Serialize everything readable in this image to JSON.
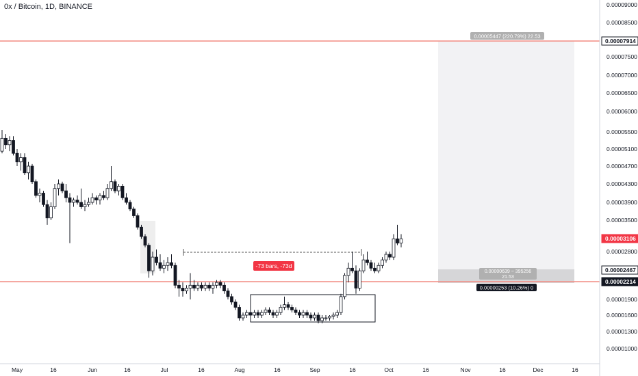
{
  "header": {
    "title": "0x / Bitcoin, 1D, BINANCE"
  },
  "colors": {
    "candle_up": "#ffffff",
    "candle_down": "#131722",
    "wick": "#131722",
    "hline": "#f28b82",
    "box_fill": "#ebebeb",
    "label_dark": "#131722",
    "label_gray": "#b0b0b0",
    "label_red": "#f23645",
    "axis_text": "#131722"
  },
  "chart_data": {
    "type": "candlestick",
    "title": "0x / Bitcoin, 1D, BINANCE",
    "y_ticks": [
      "0.00009000",
      "0.00008500",
      "0.00007914",
      "0.00007500",
      "0.00007000",
      "0.00006500",
      "0.00006000",
      "0.00005500",
      "0.00005100",
      "0.00004700",
      "0.00004300",
      "0.00003900",
      "0.00003500",
      "0.00003106",
      "0.00002800",
      "0.00002467",
      "0.00002214",
      "0.00001900",
      "0.00001600",
      "0.00001300",
      "0.00001000"
    ],
    "x_ticks": [
      "May",
      "16",
      "Jun",
      "16",
      "Jul",
      "16",
      "Aug",
      "16",
      "Sep",
      "16",
      "Oct",
      "16",
      "Nov",
      "16",
      "Dec",
      "16"
    ],
    "price_labels": [
      {
        "text": "0.00007914",
        "style": "dark-outline"
      },
      {
        "text": "0.00003106",
        "style": "red"
      },
      {
        "text": "0.00002467",
        "style": "dark-outline"
      },
      {
        "text": "0.00002214",
        "style": "dark"
      }
    ],
    "horizontal_lines": [
      "0.00007914",
      "0.00002214"
    ],
    "annotations": {
      "range_label": "-73 bars, -73d",
      "target_label": "0.00005447 (220.79%) 22.53",
      "mid_label_line1": "0.00000639 ~ 395256",
      "mid_label_line2": "21.53",
      "stop_label": "0.00000253 (10.26%) 0"
    },
    "ohlc_approx": [
      {
        "o": 5.05,
        "h": 5.55,
        "l": 5.0,
        "c": 5.35
      },
      {
        "o": 5.35,
        "h": 5.45,
        "l": 5.1,
        "c": 5.2
      },
      {
        "o": 5.2,
        "h": 5.4,
        "l": 5.05,
        "c": 5.3
      },
      {
        "o": 5.3,
        "h": 5.4,
        "l": 4.95,
        "c": 5.0
      },
      {
        "o": 5.0,
        "h": 5.1,
        "l": 4.7,
        "c": 4.8
      },
      {
        "o": 4.8,
        "h": 5.0,
        "l": 4.6,
        "c": 4.9
      },
      {
        "o": 4.9,
        "h": 5.0,
        "l": 4.5,
        "c": 4.55
      },
      {
        "o": 4.55,
        "h": 4.8,
        "l": 4.4,
        "c": 4.7
      },
      {
        "o": 4.7,
        "h": 4.75,
        "l": 4.3,
        "c": 4.35
      },
      {
        "o": 4.35,
        "h": 4.4,
        "l": 4.0,
        "c": 4.05
      },
      {
        "o": 4.05,
        "h": 4.2,
        "l": 3.9,
        "c": 4.1
      },
      {
        "o": 4.1,
        "h": 4.15,
        "l": 3.8,
        "c": 3.85
      },
      {
        "o": 3.85,
        "h": 3.95,
        "l": 3.4,
        "c": 3.55
      },
      {
        "o": 3.55,
        "h": 3.9,
        "l": 3.5,
        "c": 3.8
      },
      {
        "o": 3.8,
        "h": 4.3,
        "l": 3.75,
        "c": 4.2
      },
      {
        "o": 4.2,
        "h": 4.4,
        "l": 4.05,
        "c": 4.3
      },
      {
        "o": 4.3,
        "h": 4.35,
        "l": 4.1,
        "c": 4.15
      },
      {
        "o": 4.15,
        "h": 4.3,
        "l": 3.9,
        "c": 4.0
      },
      {
        "o": 4.0,
        "h": 4.1,
        "l": 3.0,
        "c": 3.9
      },
      {
        "o": 3.9,
        "h": 4.0,
        "l": 3.8,
        "c": 3.95
      },
      {
        "o": 3.95,
        "h": 4.05,
        "l": 3.85,
        "c": 3.9
      },
      {
        "o": 3.9,
        "h": 4.2,
        "l": 3.75,
        "c": 3.8
      },
      {
        "o": 3.8,
        "h": 3.95,
        "l": 3.7,
        "c": 3.85
      },
      {
        "o": 3.85,
        "h": 4.0,
        "l": 3.8,
        "c": 3.9
      },
      {
        "o": 3.9,
        "h": 4.1,
        "l": 3.85,
        "c": 4.0
      },
      {
        "o": 4.0,
        "h": 4.05,
        "l": 3.85,
        "c": 3.95
      },
      {
        "o": 3.95,
        "h": 4.1,
        "l": 3.85,
        "c": 4.05
      },
      {
        "o": 4.05,
        "h": 4.15,
        "l": 3.95,
        "c": 4.0
      },
      {
        "o": 4.0,
        "h": 4.3,
        "l": 3.95,
        "c": 4.2
      },
      {
        "o": 4.2,
        "h": 4.7,
        "l": 4.15,
        "c": 4.35
      },
      {
        "o": 4.35,
        "h": 4.4,
        "l": 4.1,
        "c": 4.15
      },
      {
        "o": 4.15,
        "h": 4.3,
        "l": 4.05,
        "c": 4.25
      },
      {
        "o": 4.25,
        "h": 4.3,
        "l": 3.95,
        "c": 4.0
      },
      {
        "o": 4.0,
        "h": 4.1,
        "l": 3.85,
        "c": 3.9
      },
      {
        "o": 3.9,
        "h": 3.95,
        "l": 3.7,
        "c": 3.75
      },
      {
        "o": 3.75,
        "h": 3.8,
        "l": 3.55,
        "c": 3.6
      },
      {
        "o": 3.6,
        "h": 3.65,
        "l": 3.3,
        "c": 3.35
      },
      {
        "o": 3.35,
        "h": 3.4,
        "l": 3.1,
        "c": 3.15
      },
      {
        "o": 3.15,
        "h": 3.2,
        "l": 2.9,
        "c": 2.95
      },
      {
        "o": 2.95,
        "h": 3.0,
        "l": 2.3,
        "c": 2.45
      },
      {
        "o": 2.45,
        "h": 2.8,
        "l": 2.35,
        "c": 2.7
      },
      {
        "o": 2.7,
        "h": 2.85,
        "l": 2.55,
        "c": 2.6
      },
      {
        "o": 2.6,
        "h": 2.75,
        "l": 2.45,
        "c": 2.5
      },
      {
        "o": 2.5,
        "h": 2.65,
        "l": 2.4,
        "c": 2.55
      },
      {
        "o": 2.55,
        "h": 2.7,
        "l": 2.45,
        "c": 2.6
      },
      {
        "o": 2.6,
        "h": 2.75,
        "l": 2.5,
        "c": 2.55
      },
      {
        "o": 2.55,
        "h": 2.6,
        "l": 2.1,
        "c": 2.15
      },
      {
        "o": 2.15,
        "h": 2.25,
        "l": 1.95,
        "c": 2.1
      },
      {
        "o": 2.1,
        "h": 2.2,
        "l": 1.95,
        "c": 2.05
      },
      {
        "o": 2.05,
        "h": 2.15,
        "l": 2.0,
        "c": 2.1
      },
      {
        "o": 2.1,
        "h": 2.4,
        "l": 1.9,
        "c": 2.15
      },
      {
        "o": 2.15,
        "h": 2.25,
        "l": 2.05,
        "c": 2.1
      },
      {
        "o": 2.1,
        "h": 2.2,
        "l": 2.05,
        "c": 2.15
      },
      {
        "o": 2.15,
        "h": 2.2,
        "l": 2.05,
        "c": 2.1
      },
      {
        "o": 2.1,
        "h": 2.2,
        "l": 2.05,
        "c": 2.15
      },
      {
        "o": 2.15,
        "h": 2.2,
        "l": 2.05,
        "c": 2.1
      },
      {
        "o": 2.1,
        "h": 2.2,
        "l": 2.0,
        "c": 2.15
      },
      {
        "o": 2.15,
        "h": 2.25,
        "l": 2.1,
        "c": 2.2
      },
      {
        "o": 2.2,
        "h": 2.25,
        "l": 2.1,
        "c": 2.15
      },
      {
        "o": 2.15,
        "h": 2.2,
        "l": 2.0,
        "c": 2.05
      },
      {
        "o": 2.05,
        "h": 2.1,
        "l": 1.9,
        "c": 1.95
      },
      {
        "o": 1.95,
        "h": 2.0,
        "l": 1.8,
        "c": 1.85
      },
      {
        "o": 1.85,
        "h": 1.9,
        "l": 1.7,
        "c": 1.75
      },
      {
        "o": 1.75,
        "h": 1.8,
        "l": 1.5,
        "c": 1.55
      },
      {
        "o": 1.55,
        "h": 1.65,
        "l": 1.5,
        "c": 1.6
      },
      {
        "o": 1.6,
        "h": 1.7,
        "l": 1.55,
        "c": 1.65
      },
      {
        "o": 1.65,
        "h": 1.7,
        "l": 1.55,
        "c": 1.6
      },
      {
        "o": 1.6,
        "h": 1.7,
        "l": 1.55,
        "c": 1.65
      },
      {
        "o": 1.65,
        "h": 1.7,
        "l": 1.55,
        "c": 1.6
      },
      {
        "o": 1.6,
        "h": 1.7,
        "l": 1.55,
        "c": 1.65
      },
      {
        "o": 1.65,
        "h": 1.75,
        "l": 1.6,
        "c": 1.7
      },
      {
        "o": 1.7,
        "h": 1.75,
        "l": 1.6,
        "c": 1.65
      },
      {
        "o": 1.65,
        "h": 1.7,
        "l": 1.55,
        "c": 1.6
      },
      {
        "o": 1.6,
        "h": 1.7,
        "l": 1.55,
        "c": 1.65
      },
      {
        "o": 1.65,
        "h": 1.8,
        "l": 1.6,
        "c": 1.75
      },
      {
        "o": 1.75,
        "h": 1.95,
        "l": 1.7,
        "c": 1.8
      },
      {
        "o": 1.8,
        "h": 1.85,
        "l": 1.7,
        "c": 1.75
      },
      {
        "o": 1.75,
        "h": 1.8,
        "l": 1.65,
        "c": 1.7
      },
      {
        "o": 1.7,
        "h": 1.75,
        "l": 1.6,
        "c": 1.65
      },
      {
        "o": 1.65,
        "h": 1.7,
        "l": 1.55,
        "c": 1.6
      },
      {
        "o": 1.6,
        "h": 1.7,
        "l": 1.55,
        "c": 1.65
      },
      {
        "o": 1.65,
        "h": 1.7,
        "l": 1.55,
        "c": 1.6
      },
      {
        "o": 1.6,
        "h": 1.65,
        "l": 1.5,
        "c": 1.55
      },
      {
        "o": 1.55,
        "h": 1.65,
        "l": 1.5,
        "c": 1.6
      },
      {
        "o": 1.6,
        "h": 1.65,
        "l": 1.45,
        "c": 1.5
      },
      {
        "o": 1.5,
        "h": 1.6,
        "l": 1.45,
        "c": 1.55
      },
      {
        "o": 1.55,
        "h": 1.6,
        "l": 1.5,
        "c": 1.55
      },
      {
        "o": 1.55,
        "h": 1.6,
        "l": 1.5,
        "c": 1.58
      },
      {
        "o": 1.58,
        "h": 1.65,
        "l": 1.52,
        "c": 1.6
      },
      {
        "o": 1.6,
        "h": 1.7,
        "l": 1.55,
        "c": 1.65
      },
      {
        "o": 1.65,
        "h": 2.0,
        "l": 1.6,
        "c": 1.95
      },
      {
        "o": 1.95,
        "h": 2.4,
        "l": 1.9,
        "c": 2.35
      },
      {
        "o": 2.35,
        "h": 2.6,
        "l": 2.2,
        "c": 2.5
      },
      {
        "o": 2.5,
        "h": 2.8,
        "l": 2.4,
        "c": 2.45
      },
      {
        "o": 2.45,
        "h": 2.55,
        "l": 2.0,
        "c": 2.1
      },
      {
        "o": 2.1,
        "h": 2.5,
        "l": 2.05,
        "c": 2.45
      },
      {
        "o": 2.45,
        "h": 2.75,
        "l": 2.4,
        "c": 2.65
      },
      {
        "o": 2.65,
        "h": 2.8,
        "l": 2.55,
        "c": 2.6
      },
      {
        "o": 2.6,
        "h": 2.65,
        "l": 2.45,
        "c": 2.5
      },
      {
        "o": 2.5,
        "h": 2.6,
        "l": 2.4,
        "c": 2.45
      },
      {
        "o": 2.45,
        "h": 2.6,
        "l": 2.4,
        "c": 2.55
      },
      {
        "o": 2.55,
        "h": 2.7,
        "l": 2.5,
        "c": 2.65
      },
      {
        "o": 2.65,
        "h": 2.8,
        "l": 2.6,
        "c": 2.75
      },
      {
        "o": 2.75,
        "h": 2.8,
        "l": 2.65,
        "c": 2.7
      },
      {
        "o": 2.7,
        "h": 3.2,
        "l": 2.65,
        "c": 3.1
      },
      {
        "o": 3.1,
        "h": 3.4,
        "l": 2.95,
        "c": 3.0
      },
      {
        "o": 3.0,
        "h": 3.2,
        "l": 2.9,
        "c": 3.1
      }
    ]
  }
}
